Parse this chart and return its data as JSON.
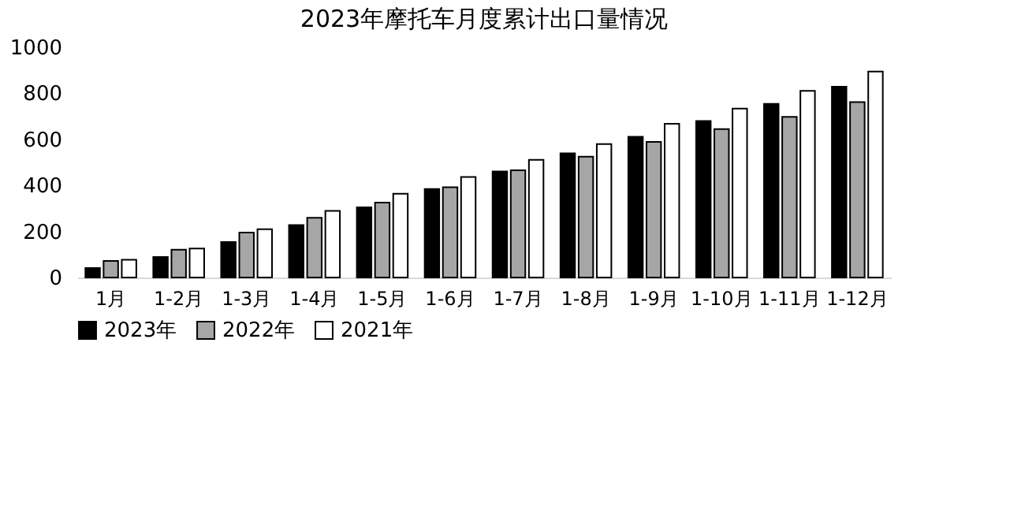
{
  "chart_data": {
    "type": "bar",
    "title": "2023年摩托车月度累计出口量情况",
    "categories": [
      "1月",
      "1-2月",
      "1-3月",
      "1-4月",
      "1-5月",
      "1-6月",
      "1-7月",
      "1-8月",
      "1-9月",
      "1-10月",
      "1-11月",
      "1-12月"
    ],
    "series": [
      {
        "name": "2023年",
        "color": "#000000",
        "values": [
          41,
          89,
          154,
          228,
          305,
          384,
          461,
          539,
          611,
          680,
          754,
          829
        ]
      },
      {
        "name": "2022年",
        "color": "#a6a6a6",
        "values": [
          72,
          121,
          195,
          259,
          325,
          392,
          466,
          525,
          589,
          645,
          698,
          762
        ]
      },
      {
        "name": "2021年",
        "color": "#ffffff",
        "values": [
          77,
          126,
          210,
          289,
          364,
          437,
          511,
          580,
          668,
          734,
          811,
          895
        ]
      }
    ],
    "ylim": [
      0,
      1000
    ],
    "yticks": [
      0,
      200,
      400,
      600,
      800,
      1000
    ],
    "grid": false,
    "legend": "bottom"
  }
}
